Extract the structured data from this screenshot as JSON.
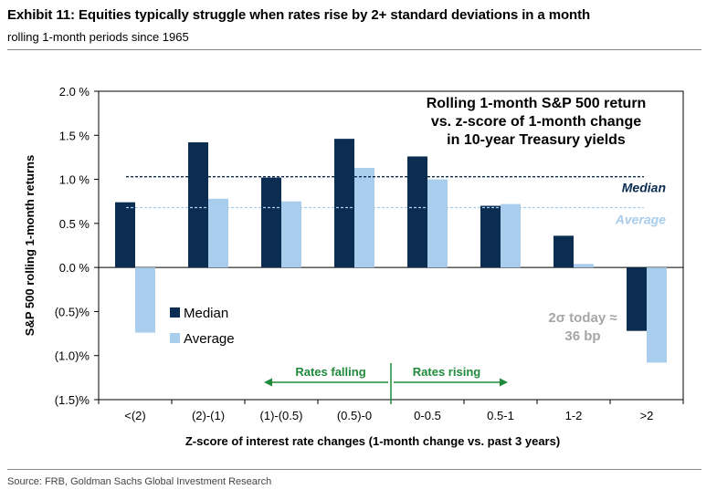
{
  "header": {
    "title": "Exhibit 11: Equities typically struggle when rates rise by 2+ standard deviations in a month",
    "subtitle": "rolling 1-month periods since 1965"
  },
  "footer": {
    "source": "Source: FRB, Goldman Sachs Global Investment Research"
  },
  "chart_data": {
    "type": "bar",
    "title": [
      "Rolling 1-month S&P 500 return",
      "vs. z-score of 1-month change",
      "in 10-year Treasury yields"
    ],
    "xlabel": "Z-score of interest rate changes (1-month change vs. past 3 years)",
    "ylabel": "S&P 500 rolling 1-month returns",
    "ylim": [
      -1.5,
      2.0
    ],
    "yticks": [
      2.0,
      1.5,
      1.0,
      0.5,
      0.0,
      -0.5,
      -1.0,
      -1.5
    ],
    "ytick_labels": [
      "2.0 %",
      "1.5 %",
      "1.0 %",
      "0.5 %",
      "0.0 %",
      "(0.5)%",
      "(1.0)%",
      "(1.5)%"
    ],
    "categories": [
      "<(2)",
      "(2)-(1)",
      "(1)-(0.5)",
      "(0.5)-0",
      "0-0.5",
      "0.5-1",
      "1-2",
      ">2"
    ],
    "series": [
      {
        "name": "Median",
        "color": "#0b2d52",
        "values": [
          0.74,
          1.42,
          1.02,
          1.46,
          1.26,
          0.7,
          0.36,
          -0.72
        ]
      },
      {
        "name": "Average",
        "color": "#a9cdec",
        "values": [
          -0.74,
          0.78,
          0.75,
          1.13,
          1.0,
          0.72,
          0.04,
          -1.08
        ]
      }
    ],
    "reference_lines": [
      {
        "label": "Median",
        "value": 1.03,
        "color": "#0b2d52"
      },
      {
        "label": "Average",
        "value": 0.68,
        "color": "#a9cdec"
      }
    ],
    "legend": {
      "placement": "lower-left",
      "entries": [
        "Median",
        "Average"
      ]
    },
    "annotations": {
      "sigma_note": [
        "2σ today ≈",
        "36 bp"
      ],
      "rates_falling": "Rates falling",
      "rates_rising": "Rates rising"
    },
    "grid": false
  }
}
